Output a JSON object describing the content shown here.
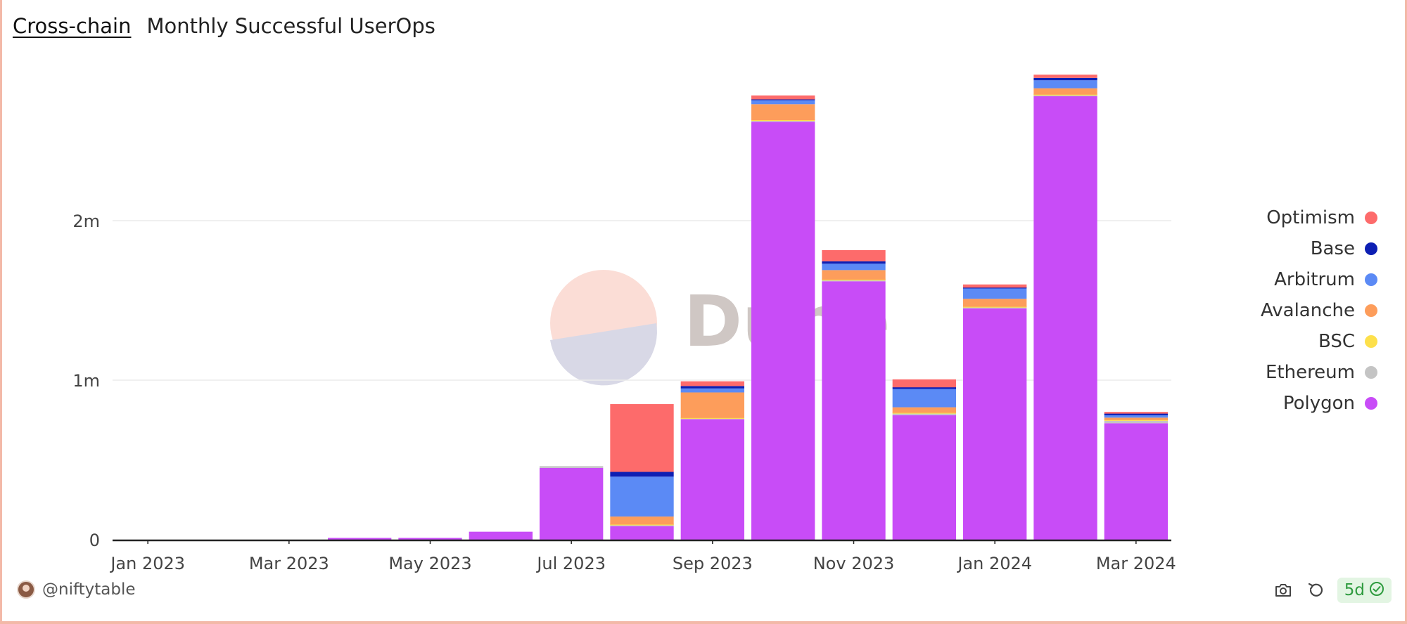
{
  "header": {
    "tab_label": "Cross-chain",
    "chart_title": "Monthly Successful UserOps"
  },
  "watermark": {
    "text": "Dune"
  },
  "footer": {
    "username": "@niftytable",
    "age_badge": "5d"
  },
  "icons": {
    "camera": "camera-icon",
    "refresh": "refresh-icon",
    "check": "check-circle-icon"
  },
  "colors": {
    "Optimism": "#fd6b6b",
    "Base": "#0d1fb3",
    "Arbitrum": "#5b8af5",
    "Avalanche": "#fd9d5b",
    "BSC": "#fde04b",
    "Ethereum": "#c4c4c4",
    "Polygon": "#c84cf7",
    "frame_border": "#f3b9a8",
    "age_badge_bg": "#e3f5e3",
    "age_badge_text": "#2e9b3e"
  },
  "chart_data": {
    "type": "bar",
    "stacked": true,
    "title": "Monthly Successful UserOps",
    "categories": [
      "2023-01",
      "2023-02",
      "2023-03",
      "2023-04",
      "2023-05",
      "2023-06",
      "2023-07",
      "2023-08",
      "2023-09",
      "2023-10",
      "2023-11",
      "2023-12",
      "2024-01",
      "2024-02",
      "2024-03"
    ],
    "x_tick_labels": [
      {
        "category": "2023-01",
        "label": "Jan 2023"
      },
      {
        "category": "2023-03",
        "label": "Mar 2023"
      },
      {
        "category": "2023-05",
        "label": "May 2023"
      },
      {
        "category": "2023-07",
        "label": "Jul 2023"
      },
      {
        "category": "2023-09",
        "label": "Sep 2023"
      },
      {
        "category": "2023-11",
        "label": "Nov 2023"
      },
      {
        "category": "2024-01",
        "label": "Jan 2024"
      },
      {
        "category": "2024-03",
        "label": "Mar 2024"
      }
    ],
    "y_ticks": [
      {
        "value": 0,
        "label": "0"
      },
      {
        "value": 1000000,
        "label": "1m"
      },
      {
        "value": 2000000,
        "label": "2m"
      }
    ],
    "ylim": [
      0,
      2900000
    ],
    "grid": true,
    "legend_position": "right",
    "series": [
      {
        "name": "Polygon",
        "values": [
          0,
          0,
          0,
          4000,
          4000,
          50000,
          450000,
          85000,
          755000,
          2620000,
          1620000,
          780000,
          1450000,
          2780000,
          730000
        ]
      },
      {
        "name": "Ethereum",
        "values": [
          0,
          0,
          0,
          0,
          0,
          0,
          10000,
          5000,
          3000,
          5000,
          5000,
          10000,
          5000,
          5000,
          15000
        ]
      },
      {
        "name": "BSC",
        "values": [
          0,
          0,
          0,
          0,
          0,
          0,
          0,
          5000,
          5000,
          5000,
          5000,
          5000,
          5000,
          5000,
          5000
        ]
      },
      {
        "name": "Avalanche",
        "values": [
          0,
          0,
          0,
          0,
          0,
          0,
          0,
          50000,
          160000,
          100000,
          60000,
          35000,
          50000,
          40000,
          15000
        ]
      },
      {
        "name": "Arbitrum",
        "values": [
          0,
          0,
          0,
          0,
          0,
          0,
          0,
          250000,
          25000,
          25000,
          40000,
          115000,
          65000,
          50000,
          15000
        ]
      },
      {
        "name": "Base",
        "values": [
          0,
          0,
          0,
          0,
          0,
          0,
          0,
          30000,
          15000,
          5000,
          15000,
          10000,
          5000,
          15000,
          10000
        ]
      },
      {
        "name": "Optimism",
        "values": [
          0,
          0,
          0,
          0,
          0,
          0,
          0,
          425000,
          30000,
          25000,
          70000,
          50000,
          20000,
          20000,
          10000
        ]
      }
    ],
    "legend_order": [
      "Optimism",
      "Base",
      "Arbitrum",
      "Avalanche",
      "BSC",
      "Ethereum",
      "Polygon"
    ]
  }
}
